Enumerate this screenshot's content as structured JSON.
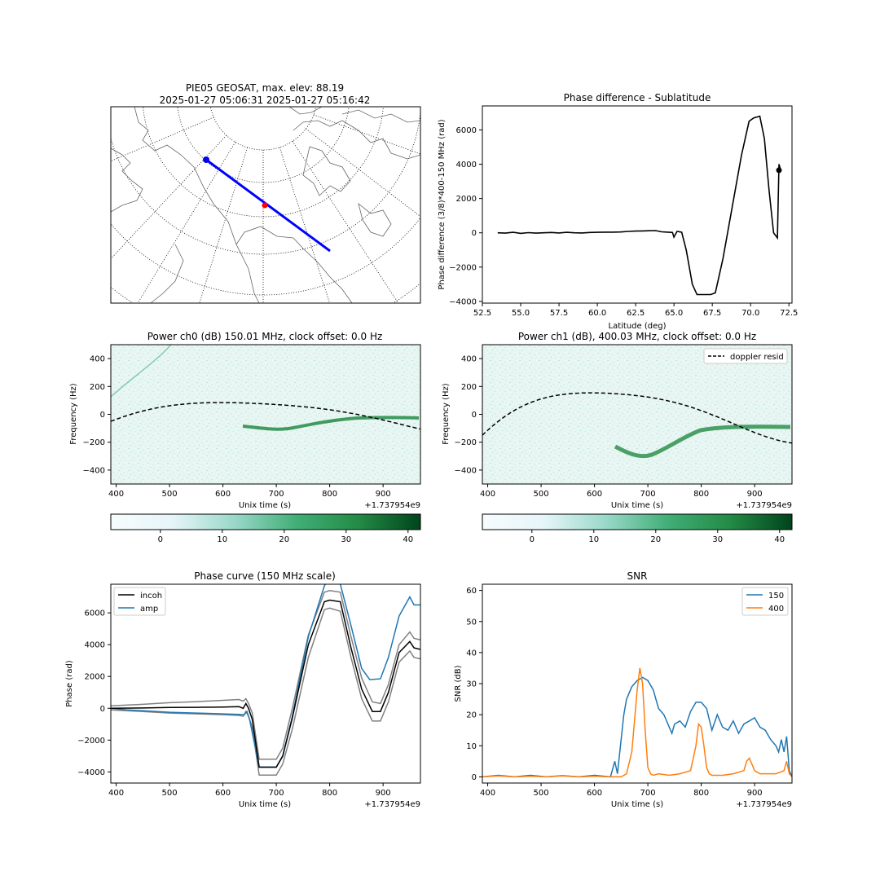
{
  "colors": {
    "blue": "#1f77b4",
    "orange": "#ff7f0e",
    "black": "#000000",
    "gray": "#808080",
    "track": "#0000ff",
    "marker": "#ff0000"
  },
  "chart_data": [
    {
      "type": "map",
      "title": "PIE05 GEOSAT, max. elev: 88.19",
      "subtitle": "2025-01-27 05:06:31 2025-01-27 05:16:42",
      "projection": "north polar stereographic",
      "grid": true,
      "track": {
        "color": "blue",
        "start_marker": "blue dot",
        "mid_marker": "red dot"
      }
    },
    {
      "type": "line",
      "title": "Phase difference - Sublatitude",
      "xlabel": "Latitude (deg)",
      "ylabel": "Phase difference (3/8)*400-150 MHz (rad)",
      "xlim": [
        52.5,
        72.7
      ],
      "ylim": [
        -4100,
        7400
      ],
      "xticks": [
        "52.5",
        "55.0",
        "57.5",
        "60.0",
        "62.5",
        "65.0",
        "67.5",
        "70.0",
        "72.5"
      ],
      "yticks": [
        "−4000",
        "−2000",
        "0",
        "2000",
        "4000",
        "6000"
      ],
      "series": [
        {
          "x": [
            53.5,
            54,
            54.5,
            55,
            55.5,
            56,
            56.5,
            57,
            57.5,
            58,
            58.5,
            59,
            59.5,
            60,
            60.5,
            61,
            61.5,
            62,
            62.5,
            63,
            63.3,
            63.8,
            64.2,
            64.6,
            64.9,
            65.0,
            65.2,
            65.5,
            65.8,
            66.2,
            66.5,
            67.0,
            67.4,
            67.7,
            68.2,
            68.8,
            69.4,
            69.9,
            70.2,
            70.6,
            70.9,
            71.2,
            71.5,
            71.75,
            71.85,
            71.95
          ],
          "y": [
            0,
            -20,
            30,
            -30,
            10,
            -20,
            0,
            20,
            -10,
            30,
            0,
            -10,
            20,
            30,
            40,
            40,
            50,
            80,
            100,
            110,
            120,
            130,
            60,
            40,
            20,
            -250,
            80,
            40,
            -1000,
            -3000,
            -3600,
            -3600,
            -3600,
            -3500,
            -1500,
            1500,
            4500,
            6500,
            6700,
            6800,
            5500,
            2500,
            0,
            -300,
            4000,
            3700
          ],
          "marker": {
            "x": 71.85,
            "y": 3650
          }
        }
      ]
    },
    {
      "type": "heatmap",
      "title": "Power ch0 (dB) 150.01 MHz, clock offset: 0.0 Hz",
      "xlabel": "Unix time (s)",
      "ylabel": "Frequency (Hz)",
      "x_offset": "+1.737954e9",
      "xlim": [
        390,
        970
      ],
      "ylim": [
        -500,
        500
      ],
      "xticks": [
        "400",
        "500",
        "600",
        "700",
        "800",
        "900"
      ],
      "yticks": [
        "−400",
        "−200",
        "0",
        "200",
        "400"
      ],
      "colorbar": {
        "range": [
          -8,
          42
        ],
        "ticks": [
          "0",
          "10",
          "20",
          "30",
          "40"
        ]
      },
      "doppler": {
        "style": "dashed"
      }
    },
    {
      "type": "heatmap",
      "title": "Power ch1 (dB), 400.03 MHz, clock offset: 0.0 Hz",
      "xlabel": "Unix time (s)",
      "ylabel": "Frequency (Hz)",
      "x_offset": "+1.737954e9",
      "xlim": [
        390,
        970
      ],
      "ylim": [
        -500,
        500
      ],
      "xticks": [
        "400",
        "500",
        "600",
        "700",
        "800",
        "900"
      ],
      "yticks": [
        "−400",
        "−200",
        "0",
        "200",
        "400"
      ],
      "legend": [
        "doppler resid"
      ],
      "legend_position": "top-right",
      "colorbar": {
        "range": [
          -8,
          42
        ],
        "ticks": [
          "0",
          "10",
          "20",
          "30",
          "40"
        ]
      },
      "doppler": {
        "style": "dashed"
      }
    },
    {
      "type": "line",
      "title": "Phase curve (150 MHz scale)",
      "xlabel": "Unix time (s)",
      "ylabel": "Phase (rad)",
      "x_offset": "+1.737954e9",
      "xlim": [
        390,
        970
      ],
      "ylim": [
        -4700,
        7800
      ],
      "xticks": [
        "400",
        "500",
        "600",
        "700",
        "800",
        "900"
      ],
      "yticks": [
        "−4000",
        "−2000",
        "0",
        "2000",
        "4000",
        "6000"
      ],
      "legend": [
        "incoh",
        "amp"
      ],
      "legend_position": "top-left",
      "series": [
        {
          "name": "incoh",
          "x": [
            390,
            450,
            500,
            550,
            600,
            630,
            638,
            643,
            648,
            655,
            668,
            700,
            712,
            730,
            760,
            790,
            800,
            820,
            840,
            860,
            880,
            895,
            910,
            930,
            950,
            958,
            970
          ],
          "y": [
            0,
            20,
            50,
            60,
            80,
            100,
            0,
            300,
            0,
            -700,
            -3700,
            -3700,
            -3000,
            -600,
            4000,
            6700,
            6800,
            6700,
            3800,
            1200,
            -200,
            -200,
            1000,
            3500,
            4200,
            3800,
            3700
          ]
        },
        {
          "name": "amp",
          "x": [
            390,
            420,
            450,
            500,
            550,
            600,
            630,
            640,
            645,
            650,
            668,
            700,
            712,
            730,
            760,
            790,
            800,
            820,
            840,
            860,
            875,
            895,
            910,
            930,
            950,
            958,
            970
          ],
          "y": [
            0,
            -100,
            -150,
            -250,
            -300,
            -350,
            -380,
            -400,
            -200,
            -700,
            -3700,
            -3700,
            -3000,
            -500,
            4500,
            7700,
            8200,
            7800,
            5200,
            2500,
            1800,
            1850,
            3200,
            5800,
            7000,
            6500,
            6500
          ]
        }
      ],
      "bounds": [
        {
          "x": [
            390,
            450,
            500,
            550,
            600,
            630,
            638,
            643,
            648,
            655,
            668,
            700,
            712,
            730,
            760,
            790,
            800,
            820,
            840,
            860,
            880,
            895,
            910,
            930,
            950,
            958,
            970
          ],
          "y": [
            150,
            250,
            350,
            420,
            500,
            550,
            450,
            600,
            300,
            -300,
            -3200,
            -3200,
            -2500,
            0,
            4600,
            7300,
            7400,
            7300,
            4500,
            1900,
            400,
            300,
            1500,
            4000,
            4800,
            4400,
            4300
          ]
        },
        {
          "x": [
            390,
            450,
            500,
            550,
            600,
            630,
            638,
            643,
            648,
            655,
            668,
            700,
            712,
            730,
            760,
            790,
            800,
            820,
            840,
            860,
            880,
            895,
            910,
            930,
            950,
            958,
            970
          ],
          "y": [
            -100,
            -200,
            -300,
            -350,
            -400,
            -450,
            -500,
            -200,
            -500,
            -1200,
            -4200,
            -4200,
            -3500,
            -1300,
            3200,
            6200,
            6300,
            6100,
            3200,
            600,
            -800,
            -800,
            400,
            2900,
            3600,
            3200,
            3100
          ]
        }
      ]
    },
    {
      "type": "line",
      "title": "SNR",
      "xlabel": "Unix time (s)",
      "ylabel": "SNR (dB)",
      "x_offset": "+1.737954e9",
      "xlim": [
        390,
        970
      ],
      "ylim": [
        -2,
        62
      ],
      "xticks": [
        "400",
        "500",
        "600",
        "700",
        "800",
        "900"
      ],
      "yticks": [
        "0",
        "10",
        "20",
        "30",
        "40",
        "50",
        "60"
      ],
      "legend": [
        "150",
        "400"
      ],
      "legend_position": "top-right",
      "series": [
        {
          "name": "150",
          "x": [
            390,
            420,
            450,
            480,
            510,
            540,
            570,
            600,
            630,
            638,
            643,
            650,
            655,
            660,
            670,
            680,
            690,
            700,
            710,
            720,
            730,
            745,
            750,
            760,
            770,
            780,
            790,
            800,
            810,
            820,
            830,
            840,
            850,
            860,
            870,
            880,
            890,
            900,
            910,
            920,
            930,
            940,
            945,
            950,
            955,
            960,
            965,
            970
          ],
          "y": [
            0,
            0.5,
            0,
            0.5,
            0,
            0.4,
            0,
            0.5,
            0,
            5,
            1,
            12,
            20,
            25,
            29,
            31,
            32,
            31,
            28,
            22,
            20,
            14,
            17,
            18,
            16,
            21,
            24,
            24,
            22,
            15,
            20,
            16,
            15,
            18,
            14,
            17,
            18,
            19,
            16,
            15,
            12,
            10,
            8,
            12,
            8,
            13,
            2,
            0
          ]
        },
        {
          "name": "400",
          "x": [
            390,
            420,
            450,
            480,
            510,
            540,
            570,
            600,
            630,
            650,
            660,
            670,
            680,
            685,
            690,
            695,
            700,
            705,
            710,
            720,
            740,
            760,
            780,
            790,
            795,
            800,
            805,
            810,
            815,
            820,
            840,
            860,
            880,
            885,
            890,
            895,
            900,
            910,
            940,
            955,
            960,
            965,
            970
          ],
          "y": [
            0,
            0.3,
            0,
            0.2,
            0,
            0.3,
            0,
            0.2,
            0,
            0,
            1,
            8,
            28,
            35,
            30,
            15,
            3,
            1,
            0.5,
            1,
            0.5,
            1,
            2,
            10,
            17,
            16,
            10,
            3,
            1,
            0.5,
            0.5,
            1,
            2,
            5,
            6,
            4,
            2,
            1,
            1,
            2,
            5,
            1,
            0
          ]
        }
      ]
    }
  ]
}
